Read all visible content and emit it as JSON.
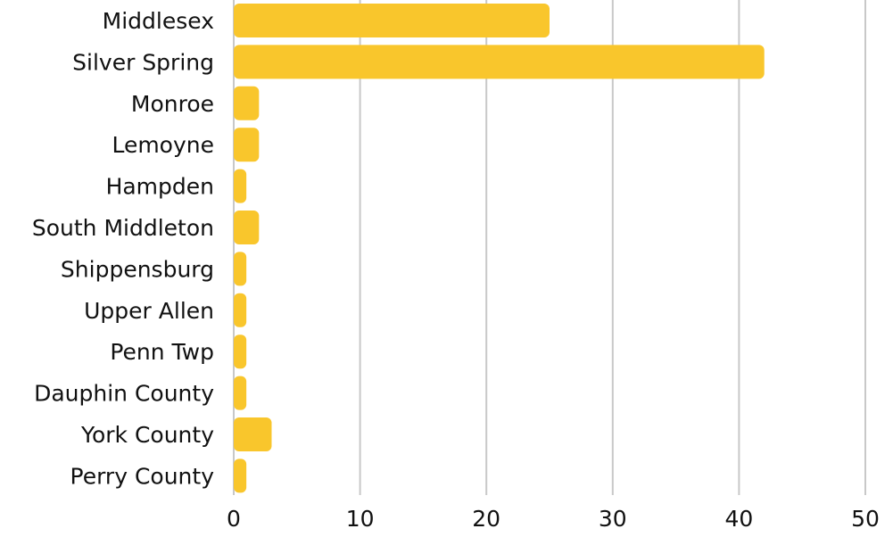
{
  "chart_data": {
    "type": "bar",
    "orientation": "horizontal",
    "categories": [
      "Middlesex",
      "Silver Spring",
      "Monroe",
      "Lemoyne",
      "Hampden",
      "South Middleton",
      "Shippensburg",
      "Upper Allen",
      "Penn Twp",
      "Dauphin County",
      "York County",
      "Perry County"
    ],
    "values": [
      25,
      42,
      2,
      2,
      1,
      2,
      1,
      1,
      1,
      1,
      3,
      1
    ],
    "xlim": [
      0,
      50
    ],
    "xticks": [
      0,
      10,
      20,
      30,
      40,
      50
    ],
    "xtick_labels": [
      "0",
      "10",
      "20",
      "30",
      "40",
      "50"
    ],
    "grid": "vertical",
    "legend": "none",
    "colors": {
      "bar": "#F9C62C",
      "grid": "#C8C8C8"
    }
  }
}
